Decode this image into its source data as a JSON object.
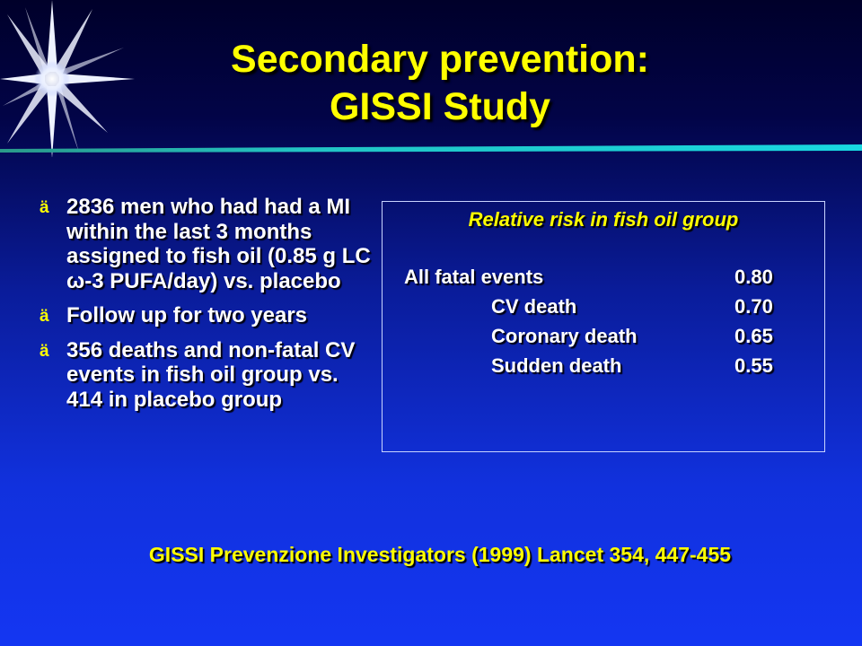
{
  "title": {
    "line1": "Secondary prevention:",
    "line2": "GISSI Study"
  },
  "colors": {
    "title": "#ffff00",
    "text": "#ffffff",
    "background_top": "#00002a",
    "background_bottom": "#1436f2",
    "rule": "#20c8c8"
  },
  "bullets": [
    {
      "text": "2836 men who had had a MI within the last 3 months assigned to fish oil (0.85 g LC ω-3 PUFA/day) vs. placebo"
    },
    {
      "text": "Follow up for two years"
    },
    {
      "text": "356 deaths and non-fatal CV events in fish oil group vs. 414 in placebo group"
    }
  ],
  "bullet_marker": "ä",
  "relative_risk": {
    "heading": "Relative risk in fish oil group",
    "rows": [
      {
        "label": "All fatal events",
        "value": "0.80"
      },
      {
        "label": "CV death",
        "value": "0.70"
      },
      {
        "label": "Coronary death",
        "value": "0.65"
      },
      {
        "label": "Sudden death",
        "value": "0.55"
      }
    ]
  },
  "citation": "GISSI Prevenzione Investigators (1999) Lancet 354, 447-455"
}
